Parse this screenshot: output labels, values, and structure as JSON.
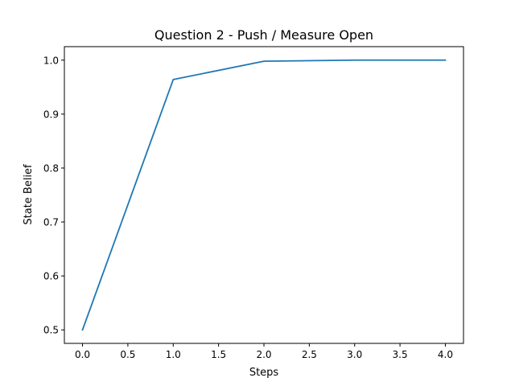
{
  "chart_data": {
    "type": "line",
    "title": "Question 2 - Push / Measure Open",
    "xlabel": "Steps",
    "ylabel": "State Belief",
    "xlim": [
      -0.2,
      4.2
    ],
    "ylim": [
      0.475,
      1.025
    ],
    "xticks": [
      0.0,
      0.5,
      1.0,
      1.5,
      2.0,
      2.5,
      3.0,
      3.5,
      4.0
    ],
    "xtick_labels": [
      "0.0",
      "0.5",
      "1.0",
      "1.5",
      "2.0",
      "2.5",
      "3.0",
      "3.5",
      "4.0"
    ],
    "yticks": [
      0.5,
      0.6,
      0.7,
      0.8,
      0.9,
      1.0
    ],
    "ytick_labels": [
      "0.5",
      "0.6",
      "0.7",
      "0.8",
      "0.9",
      "1.0"
    ],
    "grid": false,
    "series": [
      {
        "color": "#1f77b4",
        "x": [
          0,
          1,
          2,
          3,
          4
        ],
        "y": [
          0.5,
          0.964,
          0.998,
          1.0,
          1.0
        ]
      }
    ]
  }
}
